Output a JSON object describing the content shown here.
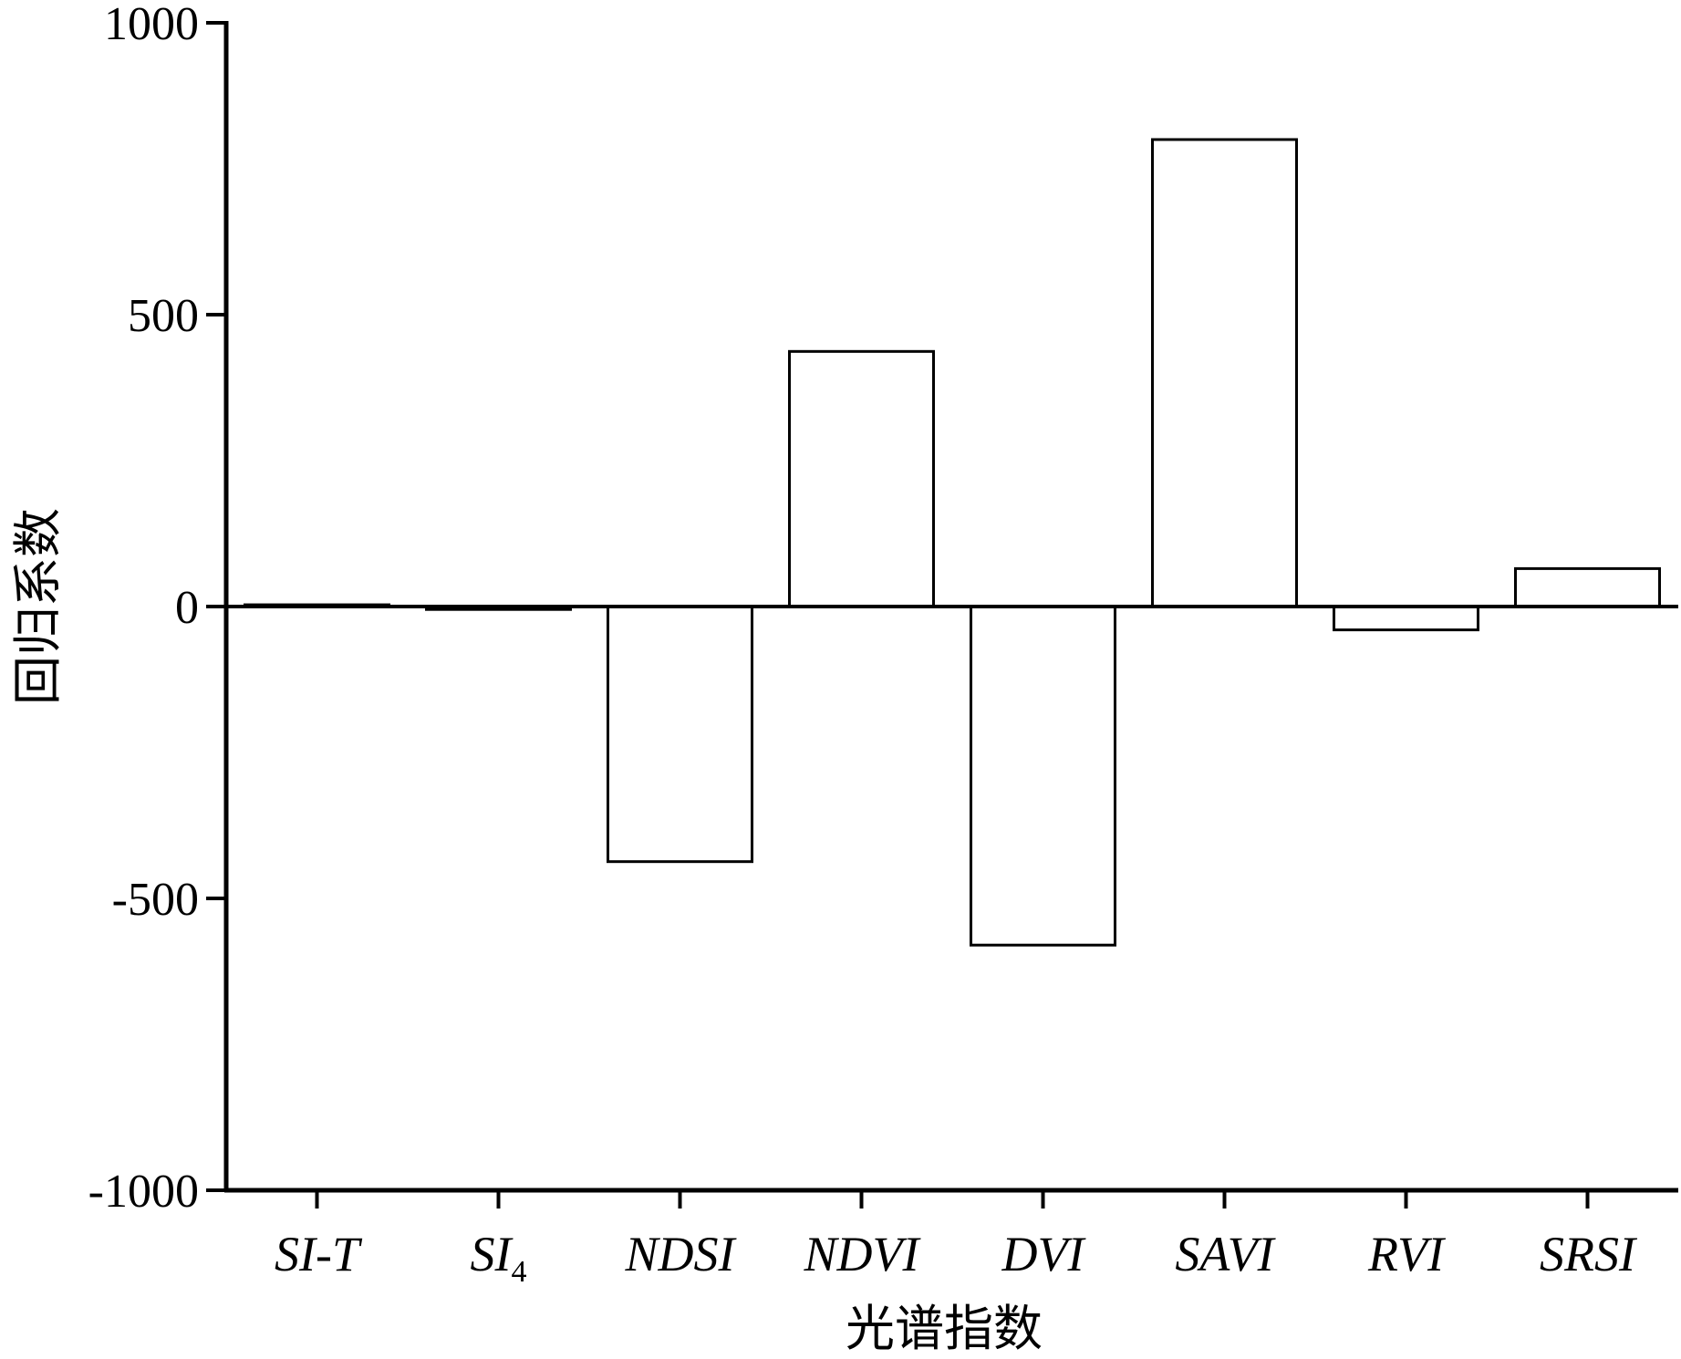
{
  "chart_data": {
    "type": "bar",
    "title": "",
    "xlabel": "光谱指数",
    "ylabel": "回归系数",
    "ylim": [
      -1000,
      1000
    ],
    "yticks": [
      1000,
      500,
      0,
      -500,
      -1000
    ],
    "ytick_labels": [
      "1000",
      "500",
      "0",
      "-500",
      "-1000"
    ],
    "categories": [
      {
        "base": "SI-T",
        "sub": ""
      },
      {
        "base": "SI",
        "sub": "4"
      },
      {
        "base": "NDSI",
        "sub": ""
      },
      {
        "base": "NDVI",
        "sub": ""
      },
      {
        "base": "DVI",
        "sub": ""
      },
      {
        "base": "SAVI",
        "sub": ""
      },
      {
        "base": "RVI",
        "sub": ""
      },
      {
        "base": "SRSI",
        "sub": ""
      }
    ],
    "values": [
      3,
      -5,
      -437,
      437,
      -580,
      800,
      -40,
      65
    ],
    "grid": false,
    "colors": {
      "bar_fill": "#ffffff",
      "bar_stroke": "#000000",
      "axis": "#000000"
    }
  }
}
